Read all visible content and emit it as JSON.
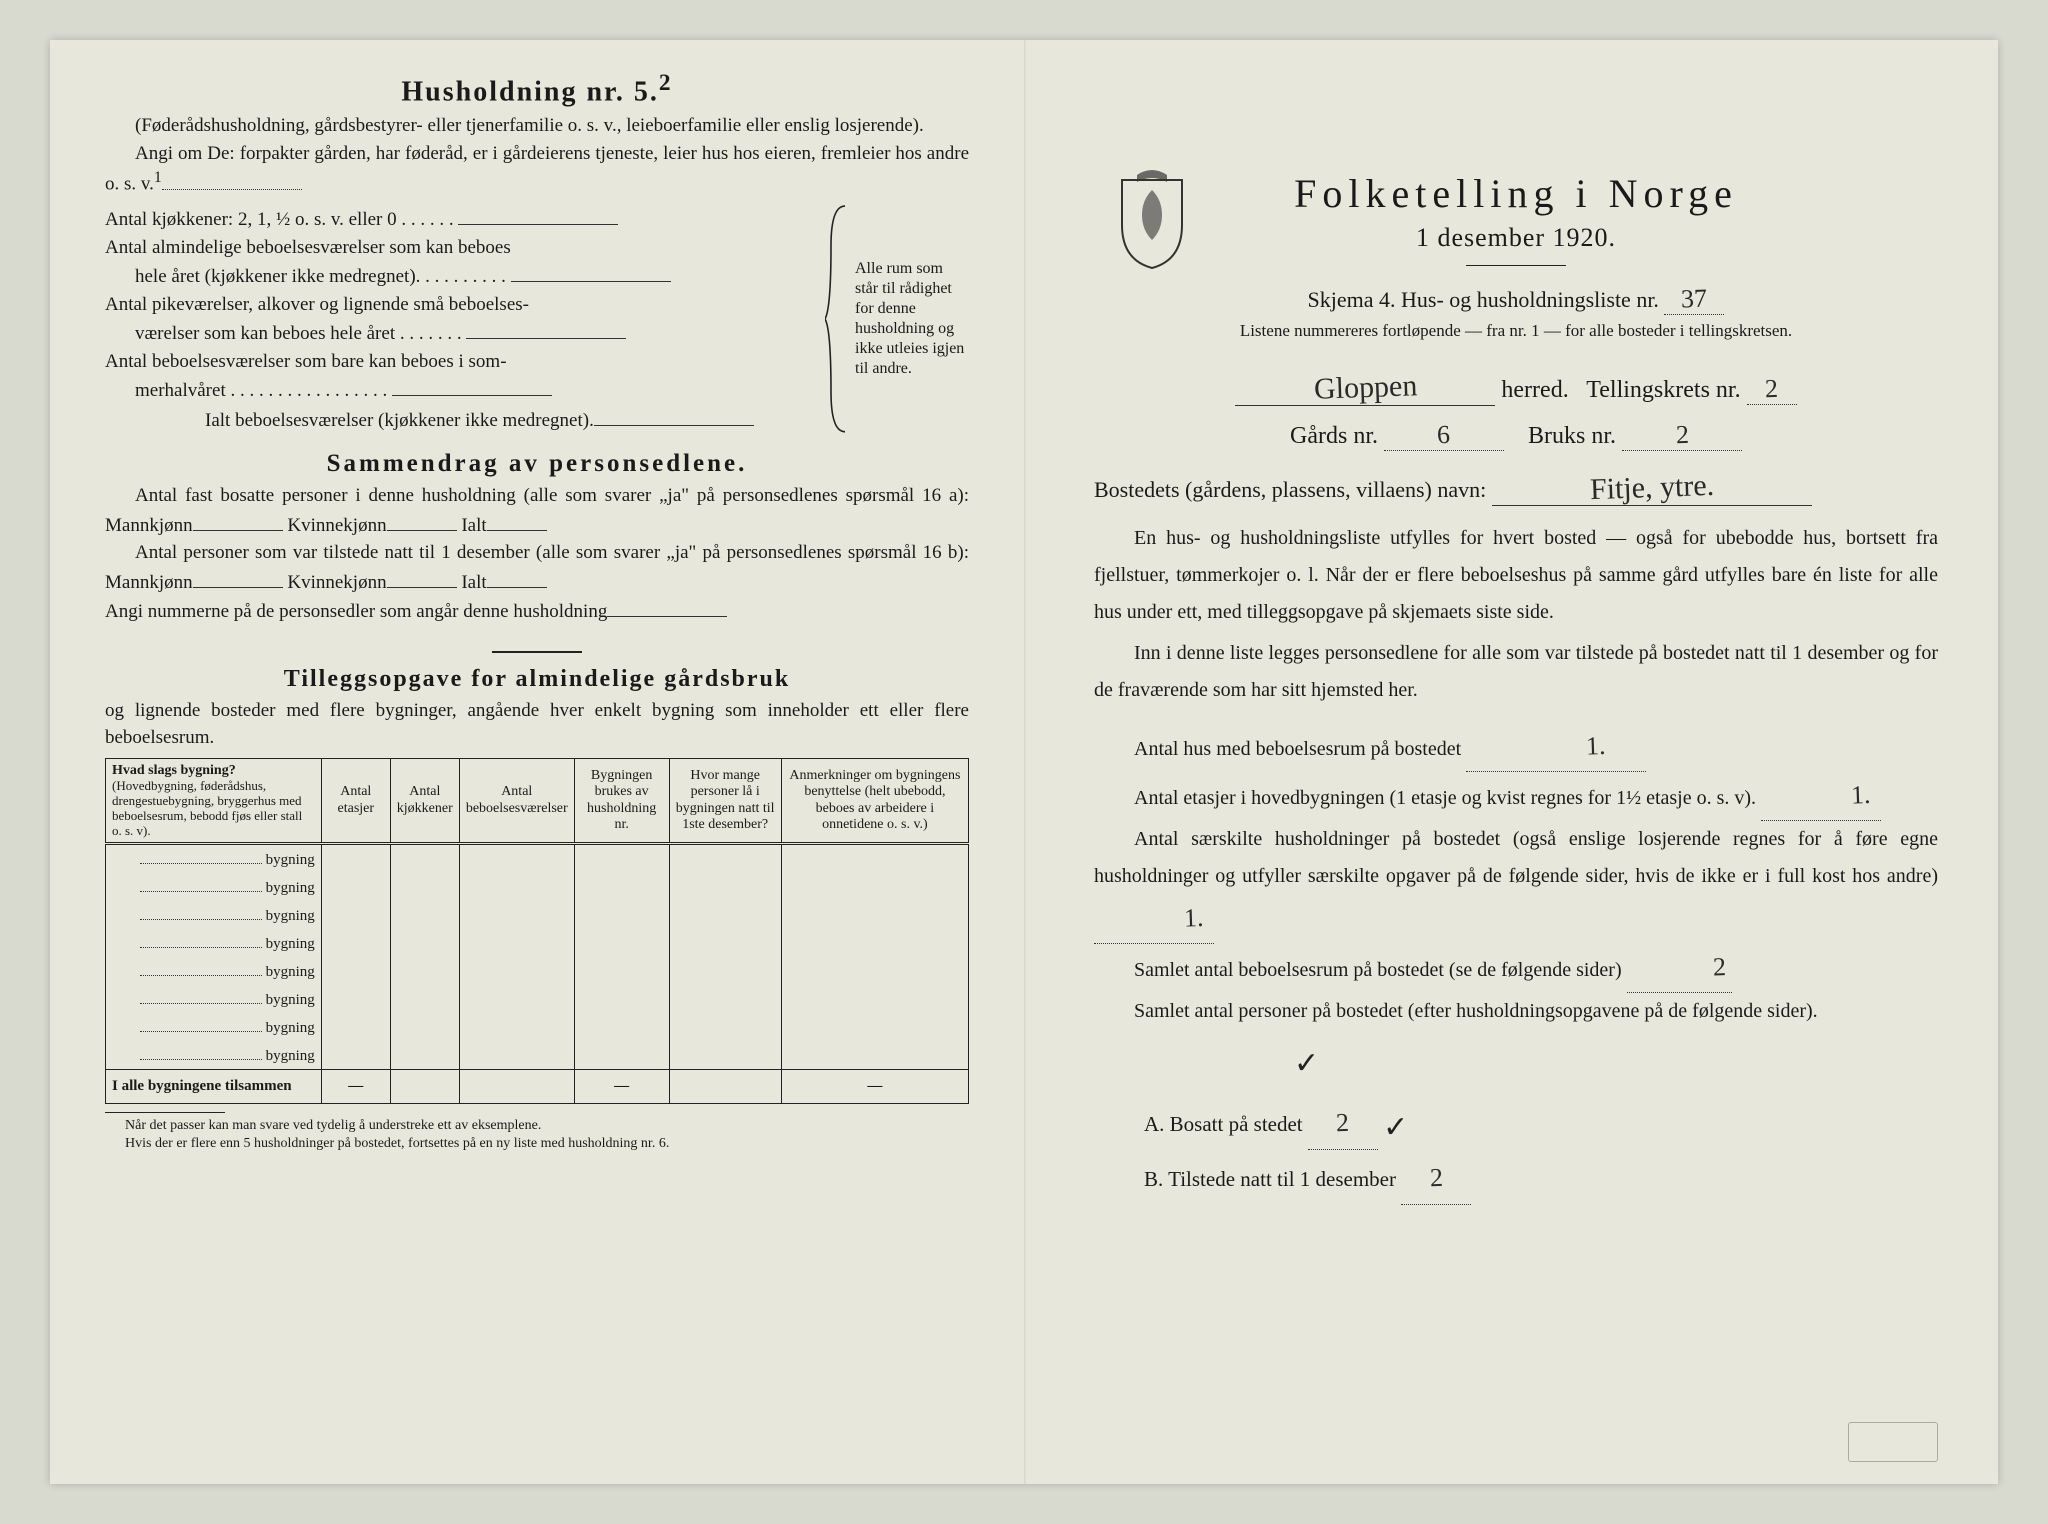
{
  "colors": {
    "page_bg": "#e8e7db",
    "body_bg": "#d8dad0",
    "ink": "#1a1a1a",
    "rule": "#222222"
  },
  "left": {
    "title": "Husholdning nr. 5.",
    "title_sup": "2",
    "paren_note": "(Føderådshusholdning, gårdsbestyrer- eller tjenerfamilie o. s. v., leieboerfamilie eller enslig losjerende).",
    "angi": "Angi om De: forpakter gården, har føderåd, er i gårdeierens tjeneste, leier hus hos eieren, fremleier hos andre o. s. v.",
    "angi_sup": "1",
    "kjokk_line": "Antal kjøkkener: 2, 1, ½ o. s. v. eller 0",
    "alm_line1": "Antal almindelige beboelsesværelser som kan beboes",
    "alm_line2": "hele året (kjøkkener ikke medregnet).",
    "pike_line1": "Antal pikeværelser, alkover og lignende små beboelses-",
    "pike_line2": "værelser som kan beboes hele året",
    "som_line1": "Antal beboelsesværelser som bare kan beboes i som-",
    "som_line2": "merhalvåret",
    "ialt_line": "Ialt beboelsesværelser (kjøkkener ikke medregnet).",
    "brace_text": "Alle rum som står til rådighet for denne husholdning og ikke utleies igjen til andre.",
    "sammen_title": "Sammendrag av personsedlene.",
    "sammen_p1a": "Antal fast bosatte personer i denne husholdning (alle som svarer „ja\" på personsedlenes spørsmål 16 a): Mannkjønn",
    "sammen_p1b": "Kvinnekjønn",
    "sammen_p1c": "Ialt",
    "sammen_p2a": "Antal personer som var tilstede natt til 1 desember (alle som svarer „ja\" på personsedlenes spørsmål 16 b): Mannkjønn",
    "angi_num": "Angi nummerne på de personsedler som angår denne husholdning",
    "tillegg_title": "Tilleggsopgave for almindelige gårdsbruk",
    "tillegg_sub": "og lignende bosteder med flere bygninger, angående hver enkelt bygning som inneholder ett eller flere beboelsesrum.",
    "table": {
      "headers": [
        "Hvad slags bygning?",
        "Antal etasjer",
        "Antal kjøkkener",
        "Antal beboelsesværelser",
        "Bygningen brukes av husholdning nr.",
        "Hvor mange personer lå i bygningen natt til 1ste desember?",
        "Anmerkninger om bygningens benyttelse (helt ubebodd, beboes av arbeidere i onnetidene o. s. v.)"
      ],
      "header_sub": "(Hovedbygning, føderådshus, drengestuebygning, bryggerhus med beboelsesrum, bebodd fjøs eller stall o. s. v).",
      "row_word": "bygning",
      "row_count": 8,
      "total_label": "I alle bygningene tilsammen",
      "total_cells": [
        "—",
        "",
        "",
        "—",
        "",
        "—"
      ]
    },
    "footnote1": "Når det passer kan man svare ved tydelig å understreke ett av eksemplene.",
    "footnote2": "Hvis der er flere enn 5 husholdninger på bostedet, fortsettes på en ny liste med husholdning nr. 6."
  },
  "right": {
    "main_title": "Folketelling i Norge",
    "sub_title": "1 desember 1920.",
    "skjema_pre": "Skjema 4.  Hus- og husholdningsliste nr.",
    "skjema_nr": "37",
    "listnote": "Listene nummereres fortløpende — fra nr. 1 — for alle bosteder i tellingskretsen.",
    "herred_hand": "Gloppen",
    "herred_label": "herred.",
    "tellings_label": "Tellingskrets nr.",
    "tellings_nr": "2",
    "gard_label": "Gårds nr.",
    "gard_nr": "6",
    "bruks_label": "Bruks nr.",
    "bruks_nr": "2",
    "bosted_label": "Bostedets (gårdens, plassens, villaens) navn:",
    "bosted_hand": "Fitje, ytre.",
    "para1": "En hus- og husholdningsliste utfylles for hvert bosted — også for ubebodde hus, bortsett fra fjellstuer, tømmerkojer o. l.  Når der er flere beboelseshus på samme gård utfylles bare én liste for alle hus under ett, med tilleggsopgave på skjemaets siste side.",
    "para2": "Inn i denne liste legges personsedlene for alle som var tilstede på bostedet natt til 1 desember og for de fraværende som har sitt hjemsted her.",
    "line_hus": "Antal hus med beboelsesrum på bostedet",
    "val_hus": "1.",
    "line_etasjer_a": "Antal etasjer i hovedbygningen (1 etasje og kvist regnes for 1½ etasje o. s. v).",
    "val_etasjer": "1.",
    "line_saer": "Antal særskilte husholdninger på bostedet (også enslige losjerende regnes for å føre egne husholdninger og utfyller særskilte opgaver på de følgende sider, hvis de ikke er i full kost hos andre)",
    "val_saer": "1.",
    "line_samlet_rum": "Samlet antal beboelsesrum på bostedet (se de følgende sider)",
    "val_samlet_rum": "2",
    "line_samlet_pers": "Samlet antal personer på bostedet (efter husholdningsopgavene på de følgende sider).",
    "ab_a": "A.  Bosatt på stedet",
    "val_a": "2",
    "ab_b": "B.  Tilstede natt til 1 desember",
    "val_b": "2",
    "check": "✓"
  }
}
